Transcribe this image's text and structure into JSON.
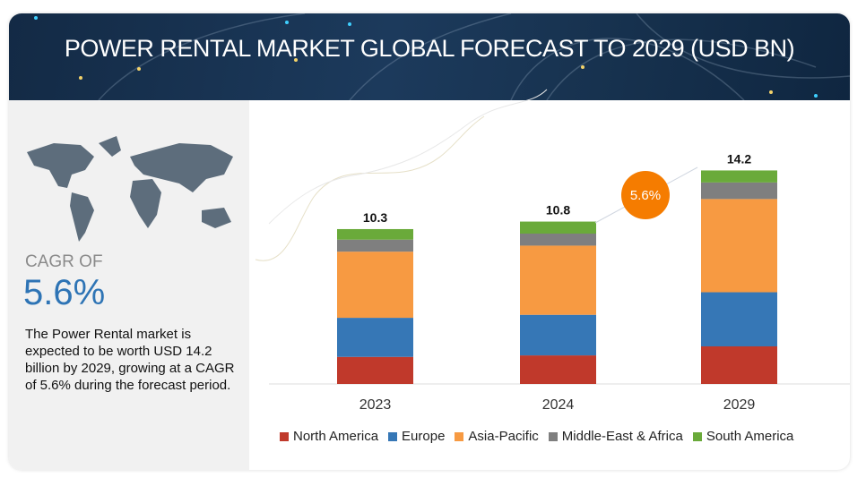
{
  "header": {
    "title": "POWER RENTAL MARKET GLOBAL FORECAST TO 2029 (USD BN)"
  },
  "left_panel": {
    "cagr_label": "CAGR OF",
    "cagr_value": "5.6%",
    "description": "The Power Rental market is expected to be worth USD 14.2 billion by 2029, growing at a CAGR of 5.6% during the forecast period."
  },
  "chart_data": {
    "type": "bar",
    "stacked": true,
    "title": "POWER RENTAL MARKET GLOBAL FORECAST TO 2029 (USD BN)",
    "categories": [
      "2023",
      "2024",
      "2029"
    ],
    "totals": [
      "10.3",
      "10.8",
      "14.2"
    ],
    "series": [
      {
        "name": "North America",
        "color": "#c0392b",
        "values": [
          1.8,
          1.9,
          2.5
        ]
      },
      {
        "name": "Europe",
        "color": "#3677b6",
        "values": [
          2.6,
          2.7,
          3.6
        ]
      },
      {
        "name": "Asia-Pacific",
        "color": "#f79a42",
        "values": [
          4.4,
          4.6,
          6.2
        ]
      },
      {
        "name": "Middle-East & Africa",
        "color": "#7f7f7f",
        "values": [
          0.8,
          0.8,
          1.1
        ]
      },
      {
        "name": "South America",
        "color": "#6aaa3a",
        "values": [
          0.7,
          0.8,
          0.8
        ]
      }
    ],
    "cagr_annotation": "5.6%",
    "cagr_color": "#f57c00",
    "legend_position": "bottom",
    "grid": false,
    "ylim": [
      0,
      14.2
    ]
  }
}
